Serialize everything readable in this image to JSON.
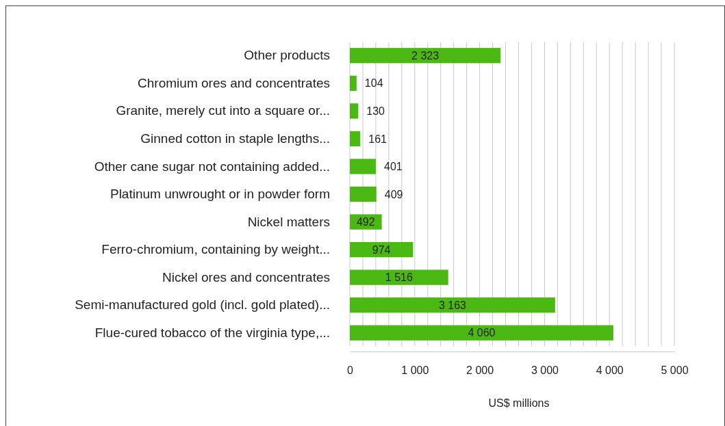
{
  "chart_data": {
    "type": "bar",
    "orientation": "horizontal",
    "xlabel": "US$ millions",
    "categories": [
      "Other products",
      "Chromium ores and concentrates",
      "Granite, merely cut into a square or...",
      "Ginned cotton in staple lengths...",
      "Other cane sugar not containing added...",
      "Platinum unwrought or in powder form",
      "Nickel matters",
      "Ferro-chromium, containing by weight...",
      "Nickel ores and concentrates",
      "Semi-manufactured gold (incl. gold plated)...",
      "Flue-cured tobacco of the virginia type,..."
    ],
    "values": [
      2323,
      104,
      130,
      161,
      401,
      409,
      492,
      974,
      1516,
      3163,
      4060
    ],
    "value_labels": [
      "2 323",
      "104",
      "130",
      "161",
      "401",
      "409",
      "492",
      "974",
      "1 516",
      "3 163",
      "4 060"
    ],
    "color": "#4cb814",
    "xlim": [
      0,
      5000
    ],
    "xticks": [
      0,
      {
        "value": 200,
        "label": null
      },
      {
        "value": 400,
        "label": null
      },
      {
        "value": 600,
        "label": null
      },
      {
        "value": 800,
        "label": null
      },
      {
        "value": 1000,
        "label": "1 000"
      },
      {
        "value": 1200,
        "label": null
      },
      {
        "value": 1400,
        "label": null
      },
      {
        "value": 1600,
        "label": null
      },
      {
        "value": 1800,
        "label": null
      },
      {
        "value": 2000,
        "label": "2 000"
      },
      {
        "value": 2200,
        "label": null
      },
      {
        "value": 2400,
        "label": null
      },
      {
        "value": 2600,
        "label": null
      },
      {
        "value": 2800,
        "label": null
      },
      {
        "value": 3000,
        "label": "3 000"
      },
      {
        "value": 3200,
        "label": null
      },
      {
        "value": 3400,
        "label": null
      },
      {
        "value": 3600,
        "label": null
      },
      {
        "value": 3800,
        "label": null
      },
      {
        "value": 4000,
        "label": "4 000"
      },
      {
        "value": 4200,
        "label": null
      },
      {
        "value": 4400,
        "label": null
      },
      {
        "value": 4600,
        "label": null
      },
      {
        "value": 4800,
        "label": null
      },
      {
        "value": 5000,
        "label": "5 000"
      }
    ],
    "grid": "x"
  }
}
